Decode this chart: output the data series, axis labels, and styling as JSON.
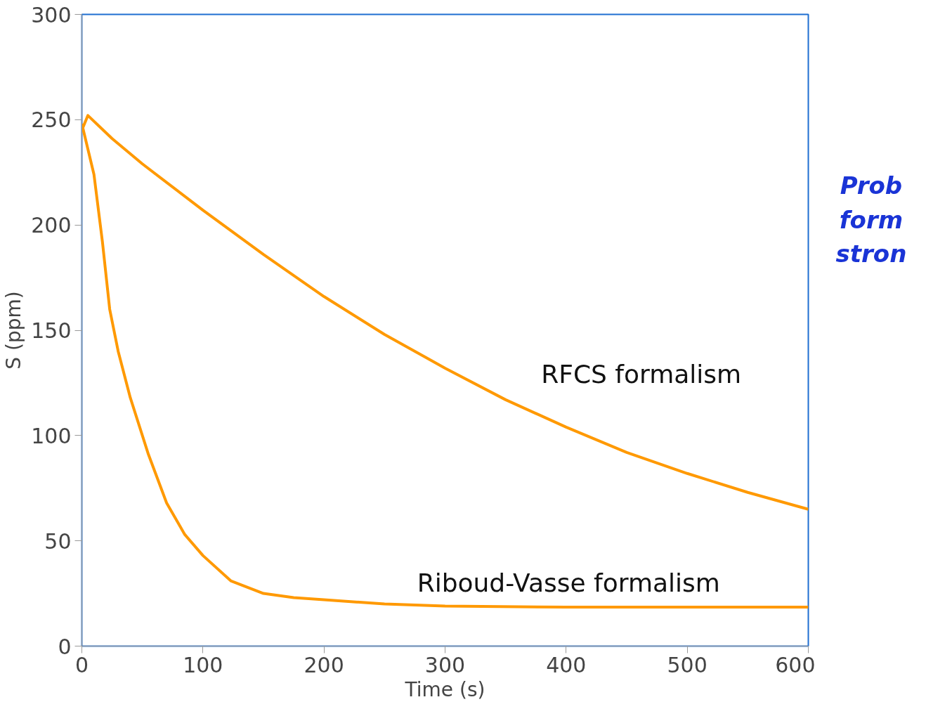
{
  "chart_data": {
    "type": "line",
    "xlabel": "Time (s)",
    "ylabel": "S (ppm)",
    "xlim": [
      0,
      600
    ],
    "ylim": [
      0,
      300
    ],
    "xticks": [
      0,
      100,
      200,
      300,
      400,
      500,
      600
    ],
    "yticks": [
      0,
      50,
      100,
      150,
      200,
      250,
      300
    ],
    "grid": false,
    "marker": "none",
    "line_style": "solid",
    "series": [
      {
        "color": "#ff9900",
        "x": [
          0,
          5,
          25,
          50,
          100,
          150,
          200,
          250,
          300,
          350,
          400,
          450,
          500,
          550,
          600
        ],
        "values": [
          245,
          252,
          241,
          229,
          207,
          186,
          166,
          148,
          132,
          117,
          104,
          92,
          82,
          73,
          65
        ]
      },
      {
        "color": "#ff9900",
        "x": [
          0,
          5,
          10,
          17,
          23,
          30,
          40,
          55,
          70,
          85,
          100,
          123,
          150,
          175,
          200,
          250,
          300,
          400,
          500,
          600
        ],
        "values": [
          248,
          236,
          224,
          192,
          160,
          140,
          118,
          91,
          68,
          53,
          43,
          31,
          25,
          23,
          22,
          20,
          19,
          18.5,
          18.5,
          18.5
        ]
      }
    ],
    "annotations": [
      "RFCS formalism",
      "Riboud-Vasse formalism",
      "Prob\nform\nstron"
    ]
  }
}
